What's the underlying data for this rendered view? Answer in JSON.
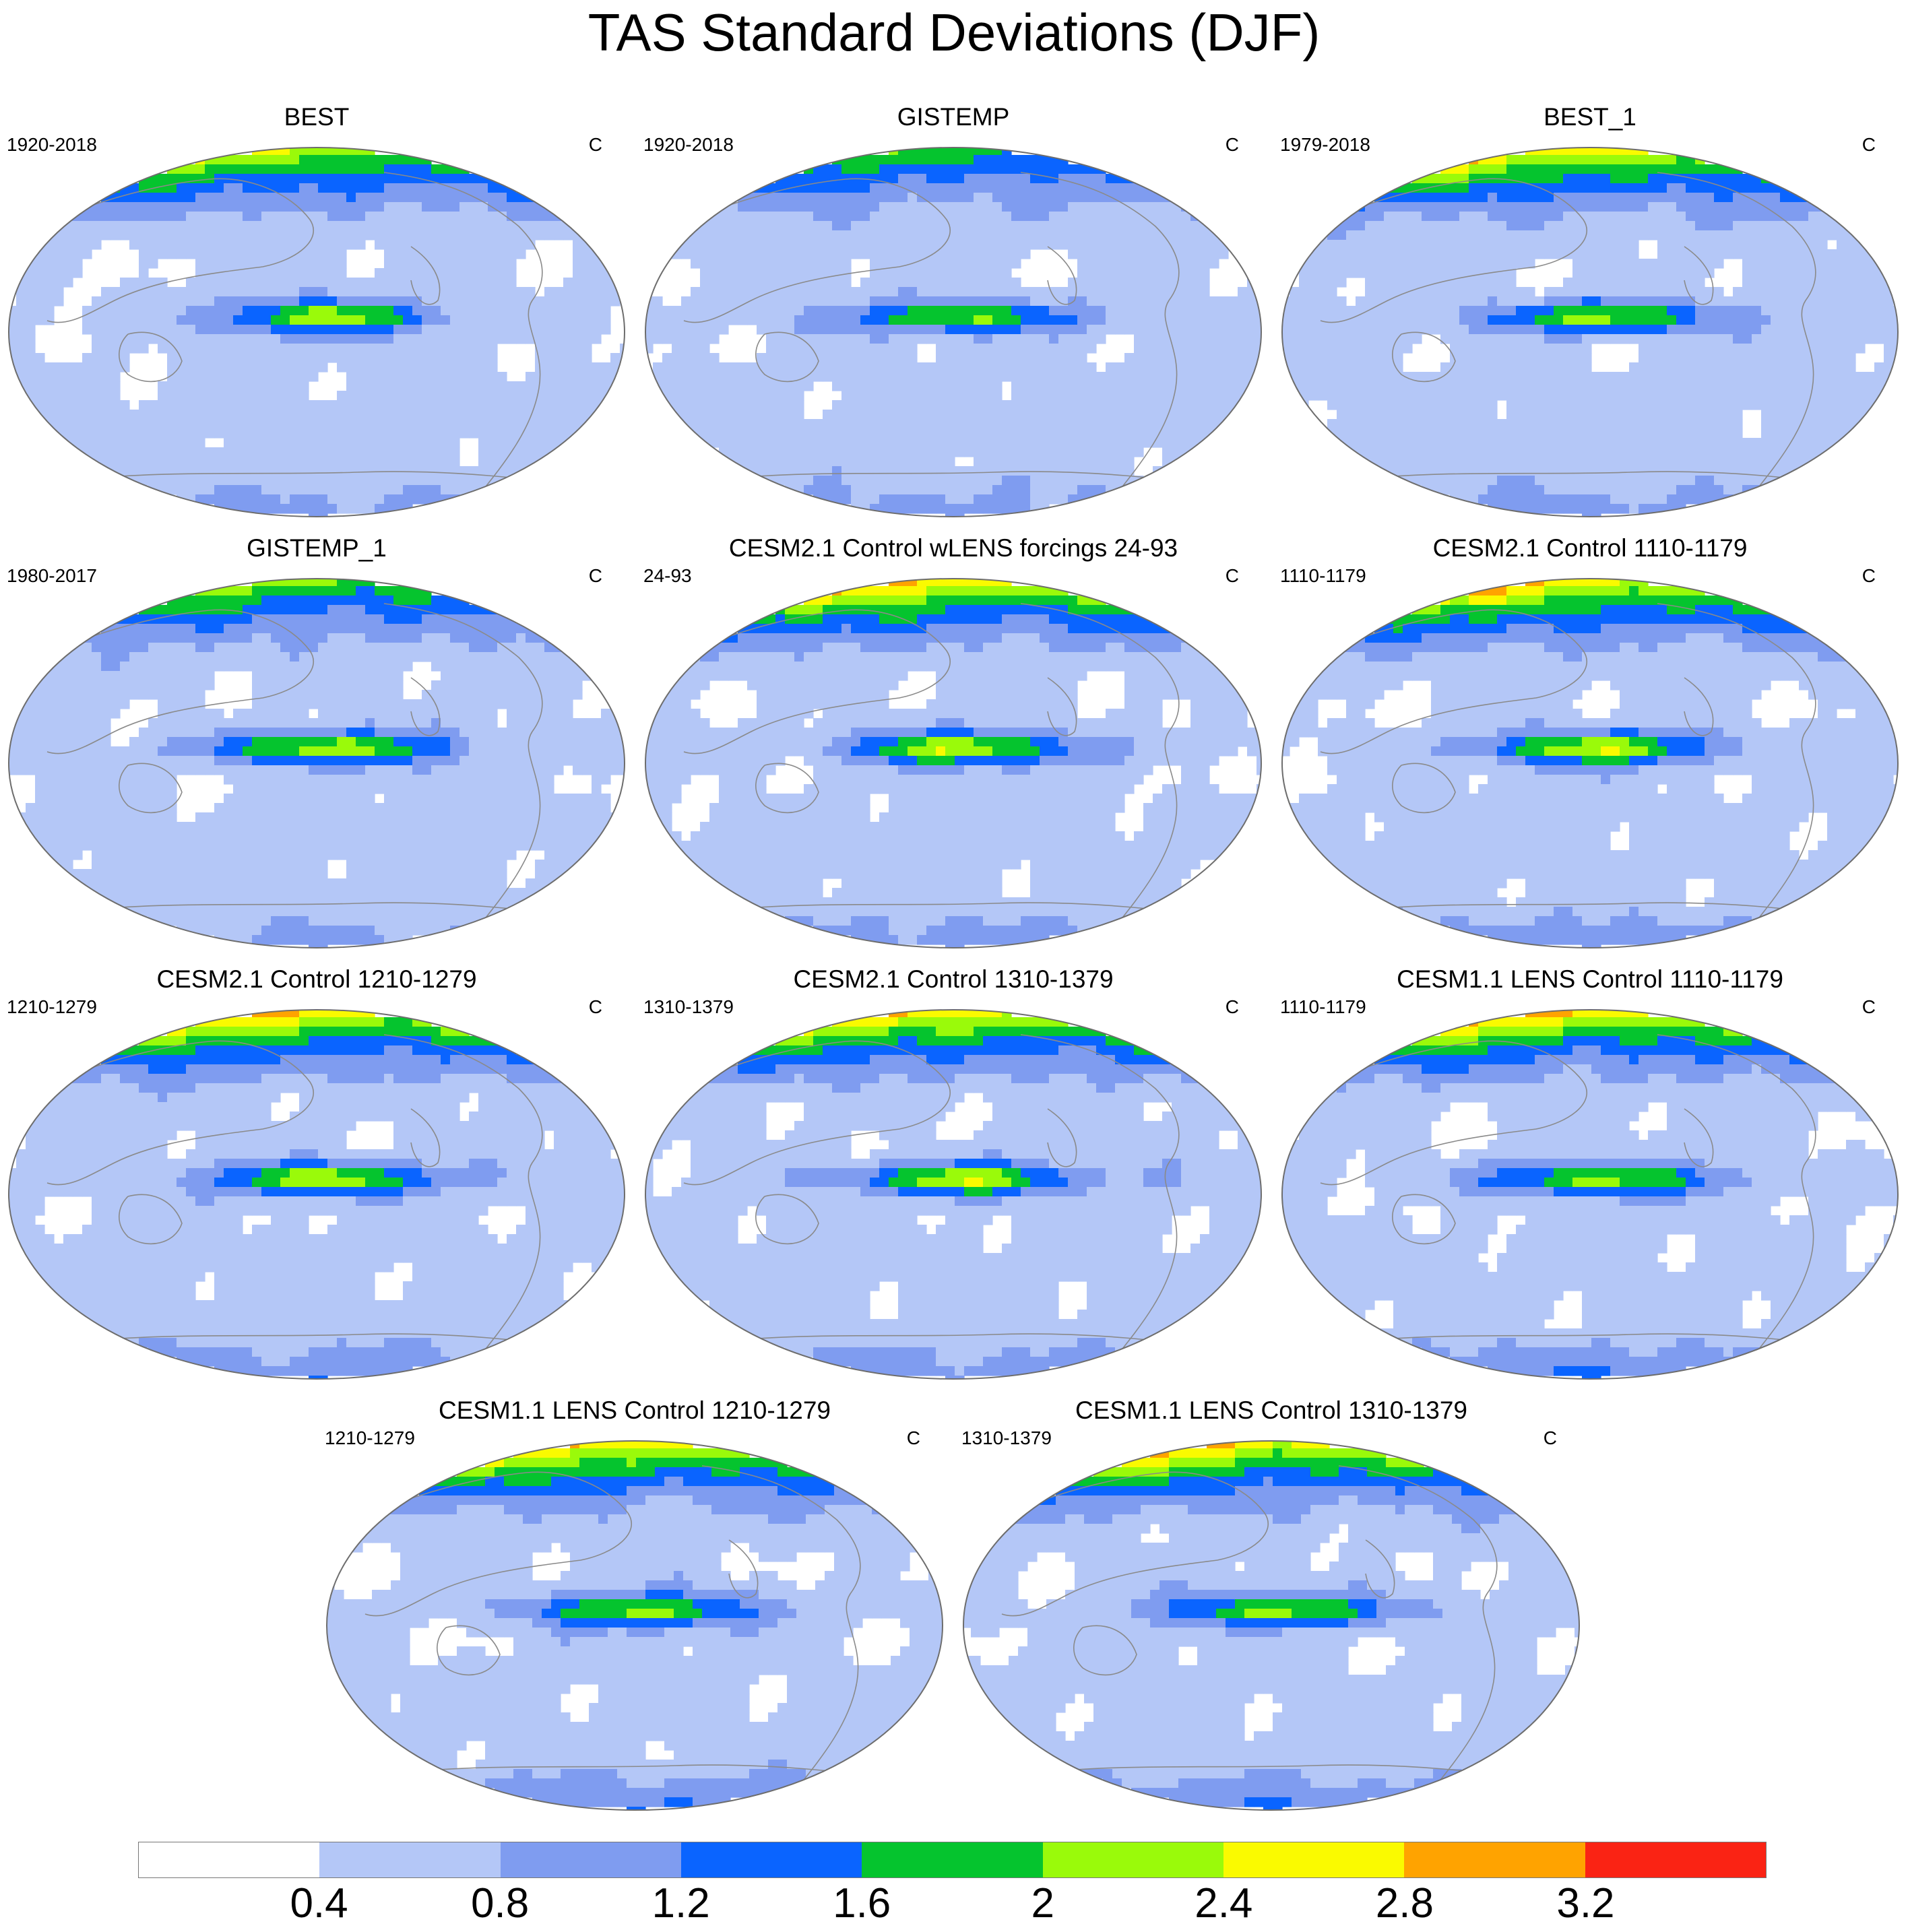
{
  "title": "TAS Standard Deviations (DJF)",
  "colors": {
    "levels": [
      "#ffffff",
      "#b4c7f7",
      "#7f9cf0",
      "#0a64ff",
      "#05c42e",
      "#9afa0a",
      "#fafa00",
      "#ffa300",
      "#fa2314"
    ],
    "coastline": "#8a8a8a",
    "outline": "#6d6d6d"
  },
  "colorbar": {
    "labels": [
      "0.4",
      "0.8",
      "1.2",
      "1.6",
      "2",
      "2.4",
      "2.8",
      "3.2"
    ]
  },
  "panels": [
    {
      "title": "BEST",
      "period": "1920-2018",
      "unit": "C",
      "arctic": 2.8,
      "enso": 1.1,
      "southern": 0.9
    },
    {
      "title": "GISTEMP",
      "period": "1920-2018",
      "unit": "C",
      "arctic": 2.2,
      "enso": 1.0,
      "southern": 0.9
    },
    {
      "title": "BEST_1",
      "period": "1979-2018",
      "unit": "C",
      "arctic": 3.2,
      "enso": 1.1,
      "southern": 0.9
    },
    {
      "title": "GISTEMP_1",
      "period": "1980-2017",
      "unit": "C",
      "arctic": 2.5,
      "enso": 1.3,
      "southern": 0.8
    },
    {
      "title": "CESM2.1 Control wLENS forcings 24-93",
      "period": "24-93",
      "unit": "C",
      "arctic": 3.3,
      "enso": 1.3,
      "southern": 1.0
    },
    {
      "title": "CESM2.1 Control 1110-1179",
      "period": "1110-1179",
      "unit": "C",
      "arctic": 3.3,
      "enso": 1.3,
      "southern": 1.0
    },
    {
      "title": "CESM2.1 Control 1210-1279",
      "period": "1210-1279",
      "unit": "C",
      "arctic": 3.3,
      "enso": 1.3,
      "southern": 1.1
    },
    {
      "title": "CESM2.1 Control 1310-1379",
      "period": "1310-1379",
      "unit": "C",
      "arctic": 3.3,
      "enso": 1.3,
      "southern": 1.0
    },
    {
      "title": "CESM1.1 LENS Control 1110-1179",
      "period": "1110-1179",
      "unit": "C",
      "arctic": 3.3,
      "enso": 1.1,
      "southern": 1.2
    },
    {
      "title": "CESM1.1 LENS Control 1210-1279",
      "period": "1210-1279",
      "unit": "C",
      "arctic": 3.3,
      "enso": 1.1,
      "southern": 1.2
    },
    {
      "title": "CESM1.1 LENS Control 1310-1379",
      "period": "1310-1379",
      "unit": "C",
      "arctic": 3.3,
      "enso": 1.1,
      "southern": 1.2
    }
  ]
}
